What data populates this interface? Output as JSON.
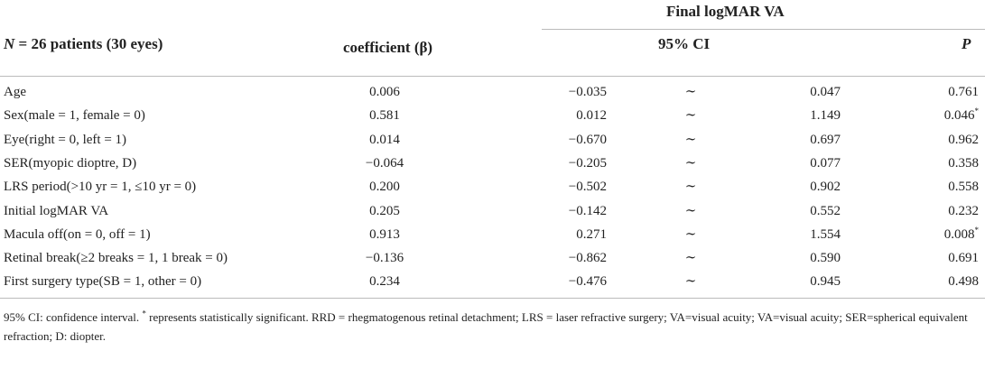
{
  "header": {
    "group_label": "Final logMAR VA",
    "col_variable": "N = 26 patients (30 eyes)",
    "col_variable_n": "N",
    "col_variable_rest": " = 26 patients (30 eyes)",
    "col_coefficient": "coefficient (β)",
    "col_ci": "95% CI",
    "col_p": "P"
  },
  "rows": [
    {
      "variable": "Age",
      "coef": "0.006",
      "ci_low": "−0.035",
      "sep": "∼",
      "ci_high": "0.047",
      "p": "0.761",
      "sig": ""
    },
    {
      "variable": "Sex(male = 1, female = 0)",
      "coef": "0.581",
      "ci_low": "0.012",
      "sep": "∼",
      "ci_high": "1.149",
      "p": "0.046",
      "sig": "*"
    },
    {
      "variable": "Eye(right = 0, left = 1)",
      "coef": "0.014",
      "ci_low": "−0.670",
      "sep": "∼",
      "ci_high": "0.697",
      "p": "0.962",
      "sig": ""
    },
    {
      "variable": "SER(myopic dioptre, D)",
      "coef": "−0.064",
      "ci_low": "−0.205",
      "sep": "∼",
      "ci_high": "0.077",
      "p": "0.358",
      "sig": ""
    },
    {
      "variable": "LRS period(>10 yr = 1, ≤10 yr = 0)",
      "coef": "0.200",
      "ci_low": "−0.502",
      "sep": "∼",
      "ci_high": "0.902",
      "p": "0.558",
      "sig": ""
    },
    {
      "variable": "Initial logMAR VA",
      "coef": "0.205",
      "ci_low": "−0.142",
      "sep": "∼",
      "ci_high": "0.552",
      "p": "0.232",
      "sig": ""
    },
    {
      "variable": "Macula off(on = 0, off = 1)",
      "coef": "0.913",
      "ci_low": "0.271",
      "sep": "∼",
      "ci_high": "1.554",
      "p": "0.008",
      "sig": "*"
    },
    {
      "variable": "Retinal break(≥2 breaks = 1, 1 break = 0)",
      "coef": "−0.136",
      "ci_low": "−0.862",
      "sep": "∼",
      "ci_high": "0.590",
      "p": "0.691",
      "sig": ""
    },
    {
      "variable": "First surgery type(SB = 1, other = 0)",
      "coef": "0.234",
      "ci_low": "−0.476",
      "sep": "∼",
      "ci_high": "0.945",
      "p": "0.498",
      "sig": ""
    }
  ],
  "footnote": {
    "part1": "95% CI: confidence interval. ",
    "star": "*",
    "part2": " represents statistically significant. RRD = rhegmatogenous retinal detachment; LRS = laser refractive surgery; VA=visual acuity; VA=visual acuity; SER=spherical equivalent refraction; D: diopter."
  }
}
